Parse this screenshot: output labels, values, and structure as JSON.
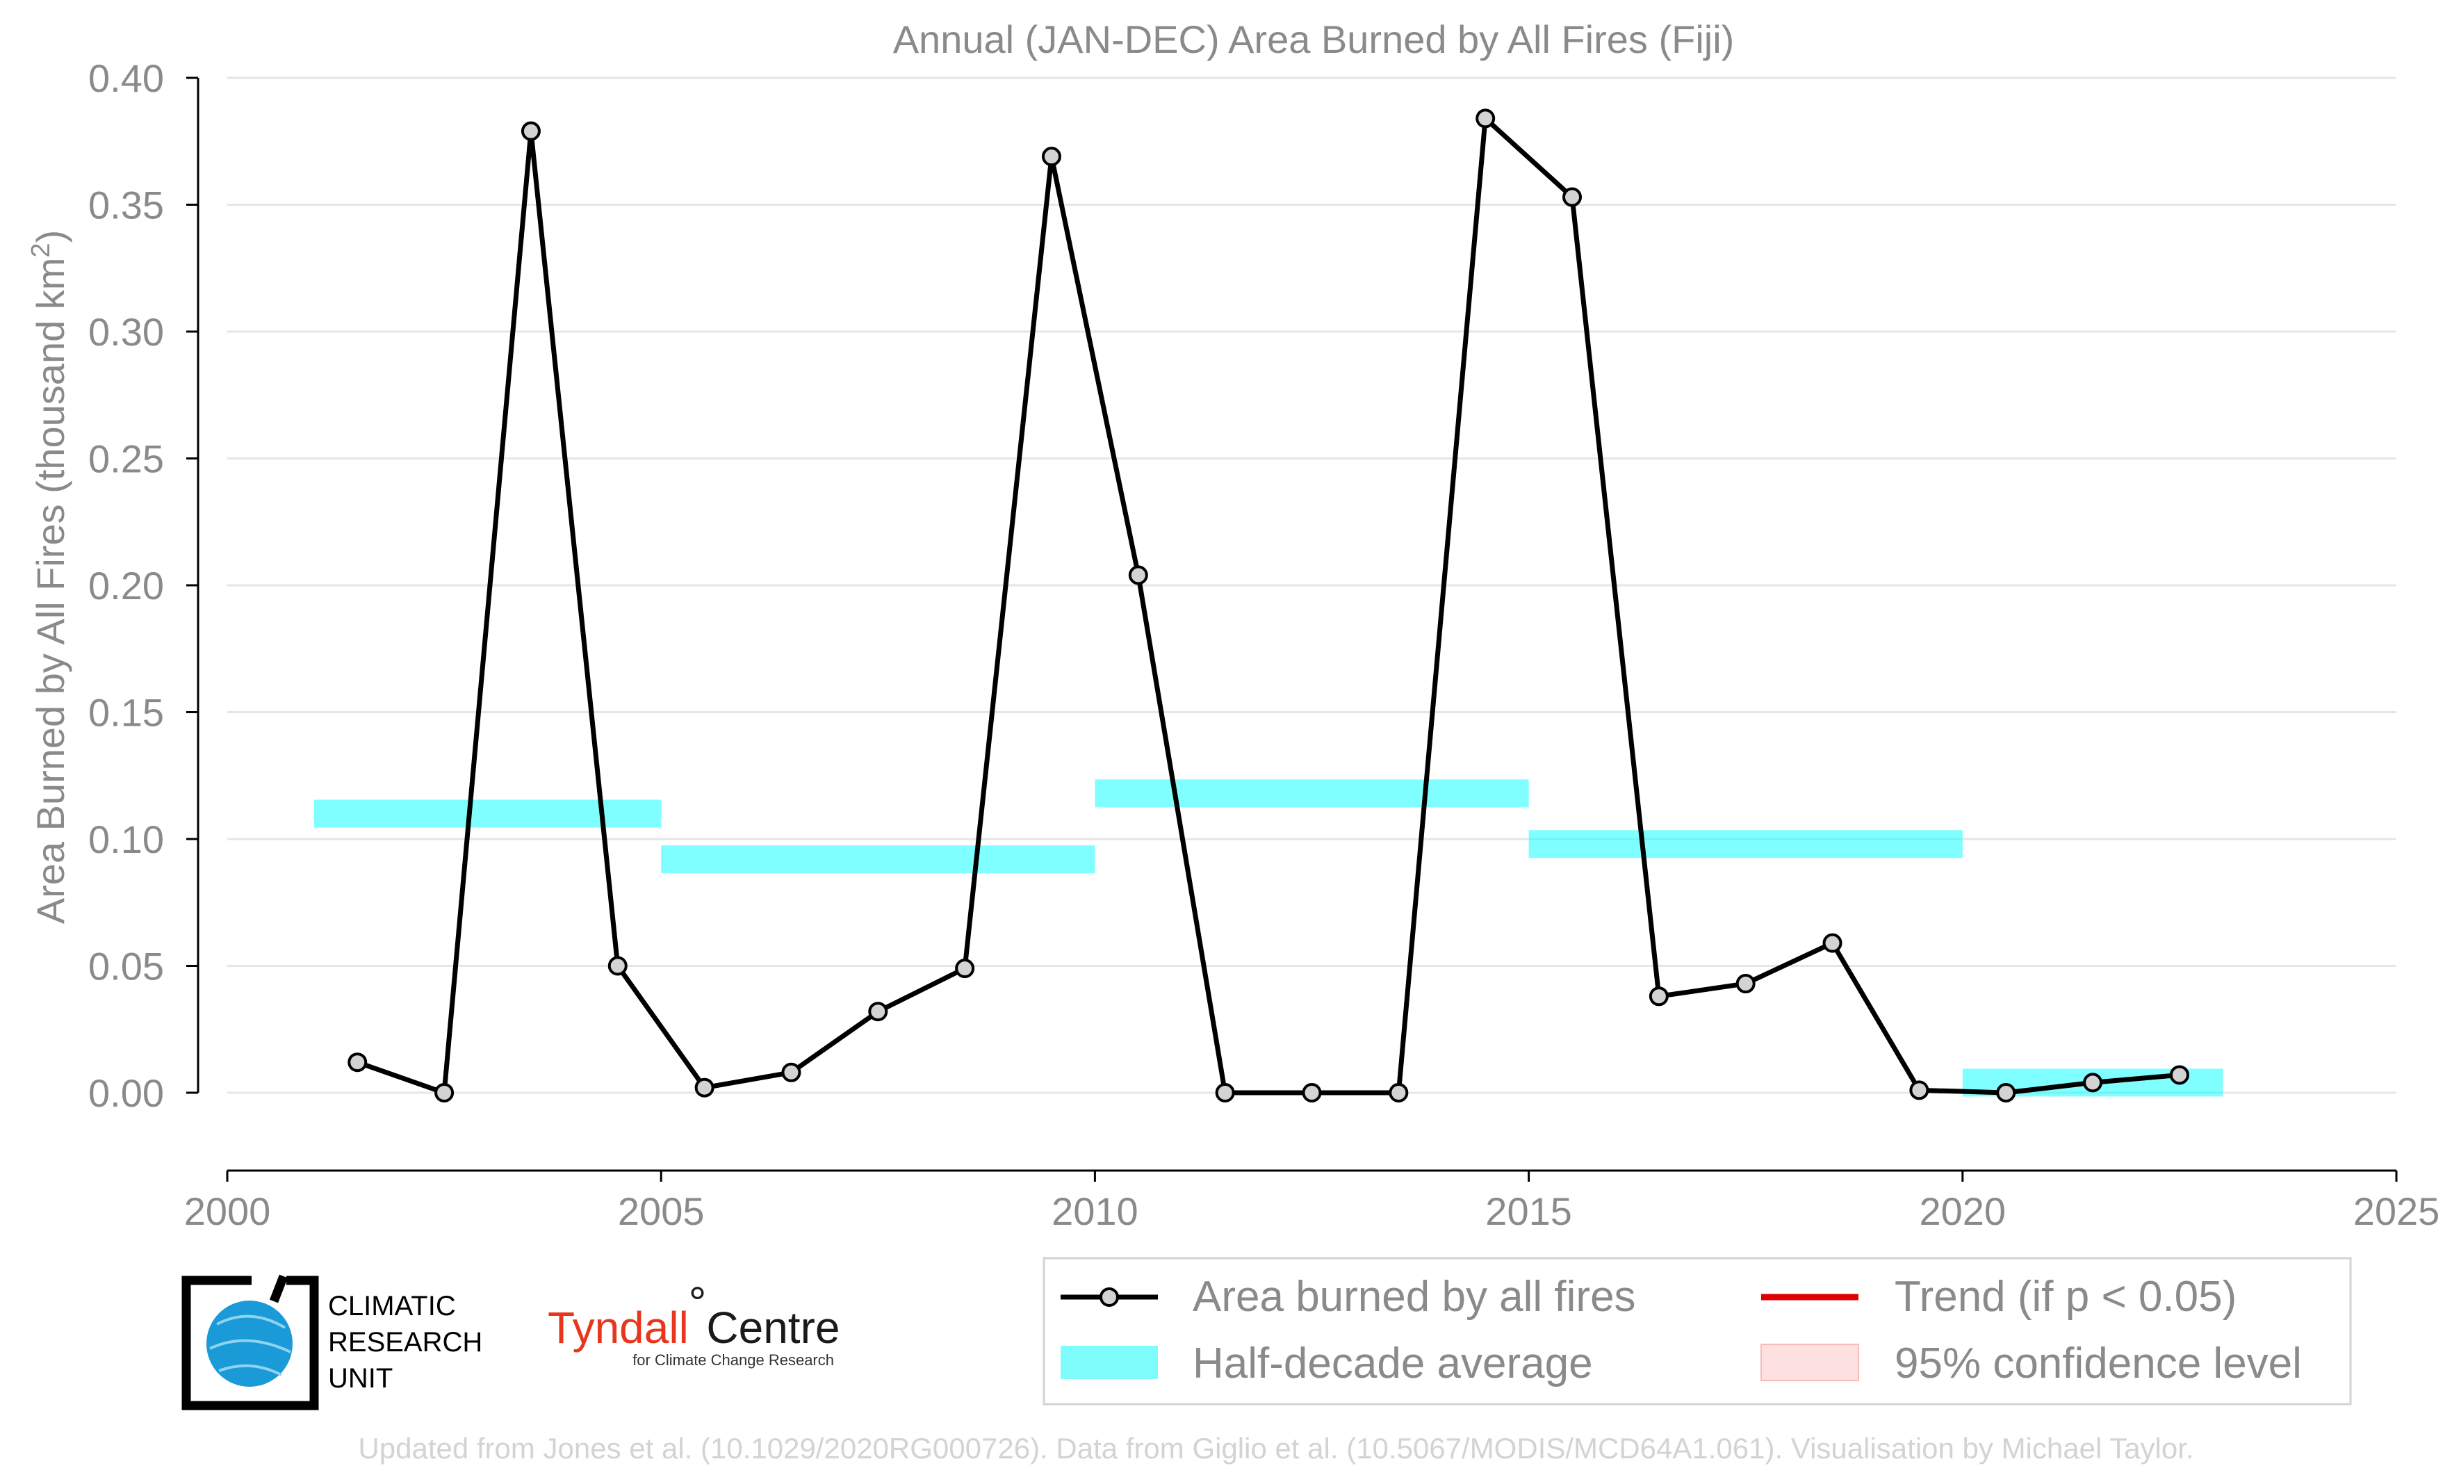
{
  "chart_data": {
    "type": "line",
    "title": "Annual (JAN-DEC) Area Burned by All Fires (Fiji)",
    "ylabel_main": "Area Burned by All Fires (thousand km",
    "ylabel_sup": "2",
    "ylabel_close": ")",
    "xlim": [
      2000,
      2025
    ],
    "ylim": [
      -0.031,
      0.4
    ],
    "xticks": [
      2000,
      2005,
      2010,
      2015,
      2020,
      2025
    ],
    "xtick_labels": [
      "2000",
      "2005",
      "2010",
      "2015",
      "2020",
      "2025"
    ],
    "yticks": [
      0.0,
      0.05,
      0.1,
      0.15,
      0.2,
      0.25,
      0.3,
      0.35,
      0.4
    ],
    "ytick_labels": [
      "0.00",
      "0.05",
      "0.10",
      "0.15",
      "0.20",
      "0.25",
      "0.30",
      "0.35",
      "0.40"
    ],
    "grid": "horizontal",
    "series": [
      {
        "name": "Area burned by all fires",
        "color": "#000000",
        "marker_fill": "#d3d3d3",
        "x": [
          2001.5,
          2002.5,
          2003.5,
          2004.5,
          2005.5,
          2006.5,
          2007.5,
          2008.5,
          2009.5,
          2010.5,
          2011.5,
          2012.5,
          2013.5,
          2014.5,
          2015.5,
          2016.5,
          2017.5,
          2018.5,
          2019.5,
          2020.5,
          2021.5,
          2022.5
        ],
        "values": [
          0.012,
          0.0,
          0.379,
          0.05,
          0.002,
          0.008,
          0.032,
          0.049,
          0.369,
          0.204,
          0.0,
          0.0,
          0.0,
          0.384,
          0.353,
          0.038,
          0.043,
          0.059,
          0.001,
          0.0,
          0.004,
          0.007
        ]
      }
    ],
    "half_decade_average": {
      "name": "Half-decade average",
      "color": "#00ffff",
      "opacity": 0.5,
      "segments": [
        {
          "x0": 2001,
          "x1": 2005,
          "value": 0.11
        },
        {
          "x0": 2005,
          "x1": 2010,
          "value": 0.092
        },
        {
          "x0": 2010,
          "x1": 2015,
          "value": 0.118
        },
        {
          "x0": 2015,
          "x1": 2020,
          "value": 0.098
        },
        {
          "x0": 2020,
          "x1": 2023,
          "value": 0.004
        }
      ]
    },
    "legend": {
      "position": "bottom-right",
      "items": [
        {
          "label": "Area burned by all fires",
          "kind": "line-marker",
          "color": "#000000"
        },
        {
          "label": "Trend (if p < 0.05)",
          "kind": "line",
          "color": "#e00000"
        },
        {
          "label": "Half-decade average",
          "kind": "band",
          "color": "#7ffcfc"
        },
        {
          "label": "95% confidence level",
          "kind": "band",
          "color": "#fde0e0"
        }
      ]
    }
  },
  "logos": {
    "cru": {
      "line1": "CLIMATIC",
      "line2": "RESEARCH",
      "line3": "UNIT"
    },
    "tyndall": {
      "main": "Tyndall",
      "degree": "°",
      "centre": "Centre",
      "sub": "for Climate Change Research"
    }
  },
  "credit": "Updated from Jones et al. (10.1029/2020RG000726). Data from Giglio et al. (10.5067/MODIS/MCD64A1.061). Visualisation by Michael Taylor."
}
